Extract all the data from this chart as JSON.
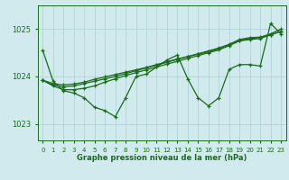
{
  "background_color": "#d0eaed",
  "grid_color": "#b0d4d8",
  "line_color": "#1a6b1a",
  "xlabel": "Graphe pression niveau de la mer (hPa)",
  "ylim": [
    1022.65,
    1025.5
  ],
  "xlim": [
    -0.5,
    23.5
  ],
  "yticks": [
    1023,
    1024,
    1025
  ],
  "xticks": [
    0,
    1,
    2,
    3,
    4,
    5,
    6,
    7,
    8,
    9,
    10,
    11,
    12,
    13,
    14,
    15,
    16,
    17,
    18,
    19,
    20,
    21,
    22,
    23
  ],
  "series": [
    [
      1024.55,
      1023.9,
      1023.7,
      1023.65,
      1023.55,
      1023.35,
      1023.28,
      1023.15,
      1023.55,
      1024.0,
      1024.05,
      1024.2,
      1024.35,
      1024.45,
      1023.95,
      1023.55,
      1023.38,
      1023.55,
      1024.15,
      1024.25,
      1024.25,
      1024.22,
      1025.12,
      1024.9
    ],
    [
      1023.92,
      1023.8,
      1023.72,
      1023.72,
      1023.75,
      1023.8,
      1023.88,
      1023.95,
      1024.02,
      1024.08,
      1024.14,
      1024.2,
      1024.26,
      1024.32,
      1024.38,
      1024.44,
      1024.5,
      1024.56,
      1024.65,
      1024.75,
      1024.78,
      1024.8,
      1024.88,
      1024.95
    ],
    [
      1023.92,
      1023.82,
      1023.78,
      1023.8,
      1023.85,
      1023.9,
      1023.95,
      1024.0,
      1024.06,
      1024.12,
      1024.18,
      1024.24,
      1024.3,
      1024.36,
      1024.42,
      1024.48,
      1024.54,
      1024.6,
      1024.68,
      1024.78,
      1024.82,
      1024.83,
      1024.9,
      1025.0
    ],
    [
      1023.92,
      1023.85,
      1023.82,
      1023.84,
      1023.88,
      1023.94,
      1023.99,
      1024.04,
      1024.09,
      1024.14,
      1024.19,
      1024.25,
      1024.31,
      1024.37,
      1024.42,
      1024.47,
      1024.52,
      1024.58,
      1024.66,
      1024.76,
      1024.8,
      1024.82,
      1024.88,
      1024.95
    ]
  ]
}
